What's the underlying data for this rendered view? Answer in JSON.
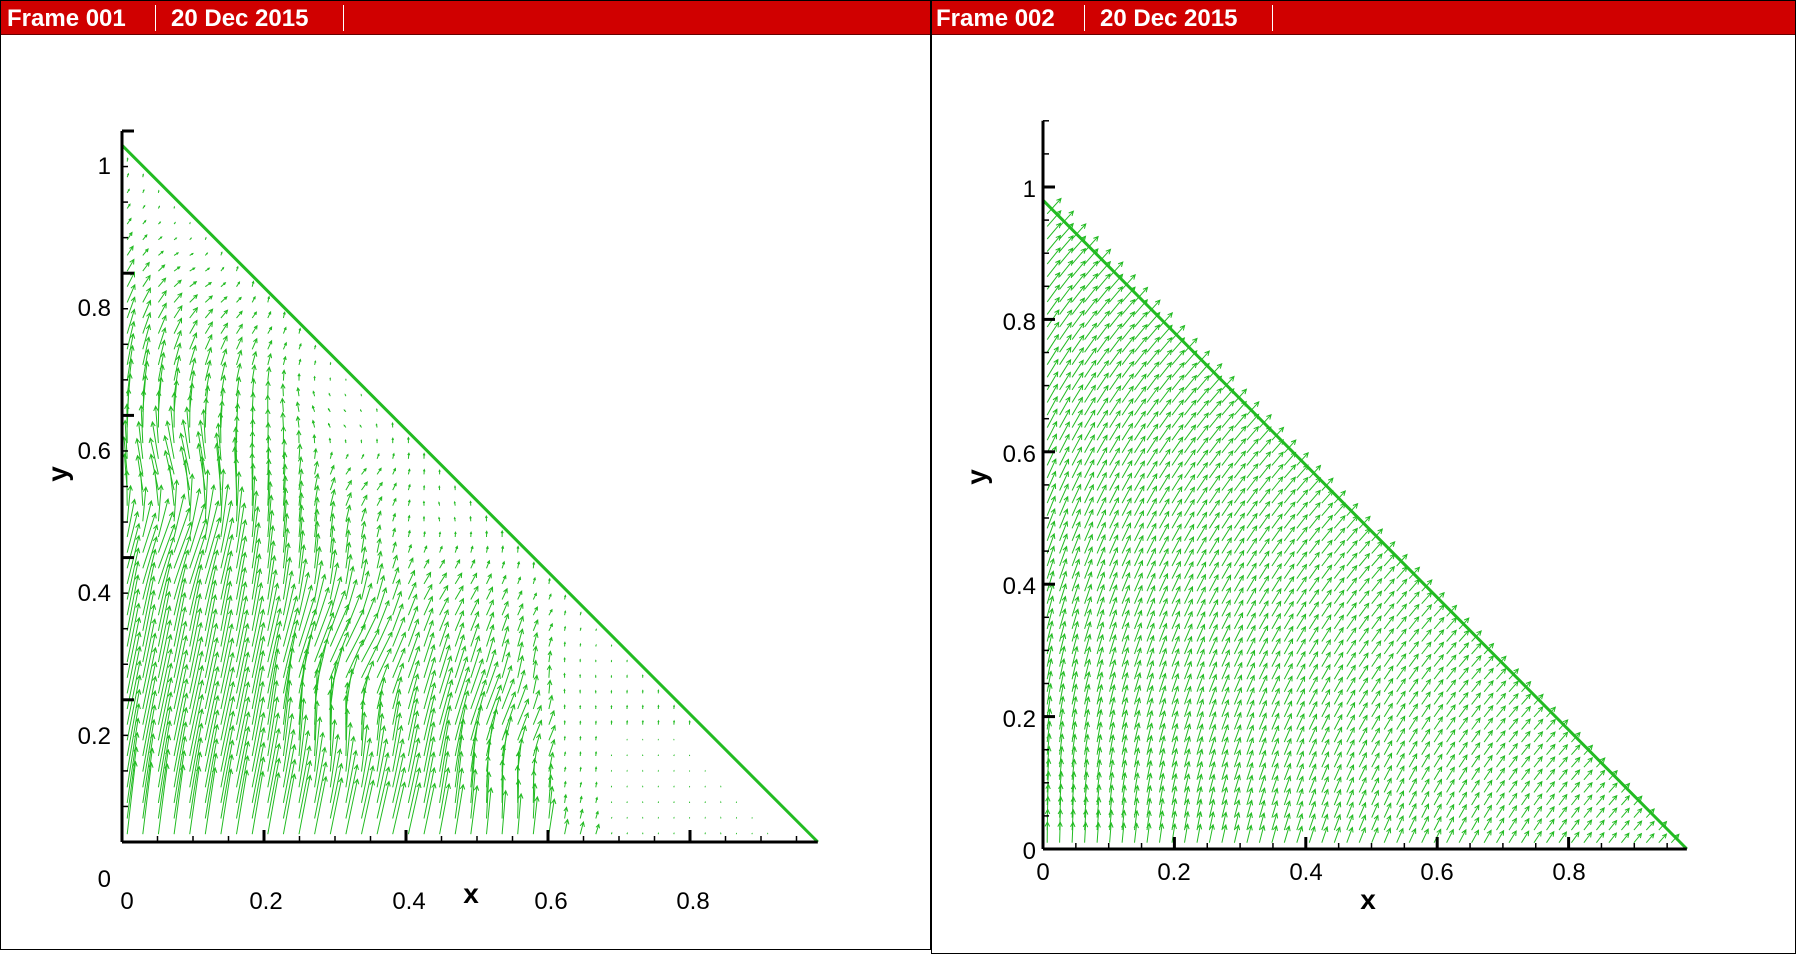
{
  "frames": [
    {
      "frame_label": "Frame 001",
      "date_label": "20 Dec 2015"
    },
    {
      "frame_label": "Frame 002",
      "date_label": "20 Dec 2015"
    }
  ],
  "colors": {
    "header": "#d00000",
    "vector": "#22bb22",
    "boundary": "#22bb22",
    "axis": "#000000"
  },
  "chart_data": [
    {
      "type": "vector-field",
      "title": "",
      "xlabel": "x",
      "ylabel": "y",
      "xlim": [
        0,
        1
      ],
      "ylim": [
        0,
        1
      ],
      "x_ticks": [
        "0",
        "0.2",
        "0.4",
        "0.6",
        "0.8"
      ],
      "y_ticks": [
        "0",
        "0.2",
        "0.4",
        "0.6",
        "0.8",
        "1"
      ],
      "boundary_line": {
        "from": [
          0,
          0.98
        ],
        "to": [
          0.98,
          0
        ]
      },
      "flow": "noisy upward field with scattered vortices"
    },
    {
      "type": "vector-field",
      "title": "",
      "xlabel": "x",
      "ylabel": "y",
      "xlim": [
        0,
        0.98
      ],
      "ylim": [
        0,
        1.1
      ],
      "x_ticks": [
        "0",
        "0.2",
        "0.4",
        "0.6",
        "0.8"
      ],
      "y_ticks": [
        "0",
        "0.2",
        "0.4",
        "0.6",
        "0.8",
        "1"
      ],
      "boundary_line": {
        "from": [
          0,
          0.98
        ],
        "to": [
          0.98,
          0
        ]
      },
      "flow": "smooth upward field turning to the upper-right"
    }
  ]
}
